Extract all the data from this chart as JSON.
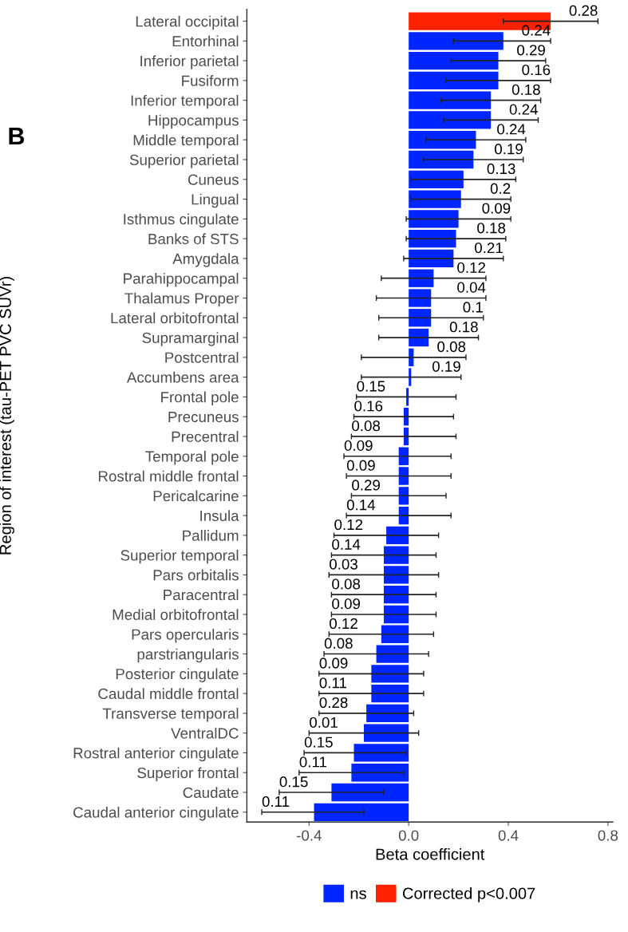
{
  "chart_data": {
    "type": "bar",
    "orientation": "horizontal",
    "xlabel": "Beta coefficient",
    "ylabel": "Region of interest (tau-PET PVC SUVr)",
    "categories": [
      "Lateral occipital",
      "Entorhinal",
      "Inferior parietal",
      "Fusiform",
      "Inferior temporal",
      "Hippocampus",
      "Middle temporal",
      "Superior parietal",
      "Cuneus",
      "Lingual",
      "Isthmus cingulate",
      "Banks of STS",
      "Amygdala",
      "Parahippocampal",
      "Thalamus Proper",
      "Lateral orbitofrontal",
      "Supramarginal",
      "Postcentral",
      "Accumbens area",
      "Frontal pole",
      "Precuneus",
      "Precentral",
      "Temporal pole",
      "Rostral middle frontal",
      "Pericalcarine",
      "Insula",
      "Pallidum",
      "Superior temporal",
      "Pars orbitalis",
      "Paracentral",
      "Medial orbitofrontal",
      "Pars opercularis",
      "parstriangularis",
      "Posterior cingulate",
      "Caudal middle frontal",
      "Transverse temporal",
      "VentralDC",
      "Rostral anterior cingulate",
      "Superior frontal",
      "Caudate",
      "Caudal anterior cingulate"
    ],
    "series": [
      {
        "name": "ns",
        "color": "#0026ff",
        "values": [
          null,
          0.38,
          0.36,
          0.36,
          0.33,
          0.33,
          0.27,
          0.26,
          0.22,
          0.21,
          0.2,
          0.19,
          0.18,
          0.1,
          0.09,
          0.09,
          0.08,
          0.02,
          0.01,
          -0.01,
          -0.02,
          -0.02,
          -0.04,
          -0.04,
          -0.04,
          -0.04,
          -0.09,
          -0.1,
          -0.1,
          -0.1,
          -0.1,
          -0.11,
          -0.13,
          -0.15,
          -0.15,
          -0.17,
          -0.18,
          -0.22,
          -0.23,
          -0.31,
          -0.38
        ],
        "errors": [
          null,
          [
            0.18,
            0.57
          ],
          [
            0.17,
            0.55
          ],
          [
            0.15,
            0.57
          ],
          [
            0.13,
            0.53
          ],
          [
            0.14,
            0.52
          ],
          [
            0.07,
            0.47
          ],
          [
            0.06,
            0.46
          ],
          [
            0.01,
            0.43
          ],
          [
            0.01,
            0.41
          ],
          [
            -0.01,
            0.41
          ],
          [
            -0.01,
            0.39
          ],
          [
            -0.02,
            0.38
          ],
          [
            -0.11,
            0.31
          ],
          [
            -0.13,
            0.31
          ],
          [
            -0.12,
            0.3
          ],
          [
            -0.12,
            0.28
          ],
          [
            -0.19,
            0.23
          ],
          [
            -0.19,
            0.21
          ],
          [
            -0.21,
            0.19
          ],
          [
            -0.22,
            0.18
          ],
          [
            -0.23,
            0.19
          ],
          [
            -0.26,
            0.17
          ],
          [
            -0.25,
            0.17
          ],
          [
            -0.23,
            0.15
          ],
          [
            -0.25,
            0.17
          ],
          [
            -0.3,
            0.12
          ],
          [
            -0.31,
            0.11
          ],
          [
            -0.32,
            0.12
          ],
          [
            -0.31,
            0.11
          ],
          [
            -0.31,
            0.11
          ],
          [
            -0.32,
            0.1
          ],
          [
            -0.34,
            0.08
          ],
          [
            -0.36,
            0.06
          ],
          [
            -0.36,
            0.06
          ],
          [
            -0.36,
            0.02
          ],
          [
            -0.4,
            0.04
          ],
          [
            -0.42,
            -0.01
          ],
          [
            -0.44,
            -0.02
          ],
          [
            -0.52,
            -0.1
          ],
          [
            -0.59,
            -0.18
          ]
        ]
      },
      {
        "name": "Corrected p<0.007",
        "color": "#ff2200",
        "values": [
          0.57,
          null,
          null,
          null,
          null,
          null,
          null,
          null,
          null,
          null,
          null,
          null,
          null,
          null,
          null,
          null,
          null,
          null,
          null,
          null,
          null,
          null,
          null,
          null,
          null,
          null,
          null,
          null,
          null,
          null,
          null,
          null,
          null,
          null,
          null,
          null,
          null,
          null,
          null,
          null,
          null
        ],
        "errors": [
          [
            0.38,
            0.76
          ],
          null,
          null,
          null,
          null,
          null,
          null,
          null,
          null,
          null,
          null,
          null,
          null,
          null,
          null,
          null,
          null,
          null,
          null,
          null,
          null,
          null,
          null,
          null,
          null,
          null,
          null,
          null,
          null,
          null,
          null,
          null,
          null,
          null,
          null,
          null,
          null,
          null,
          null,
          null,
          null
        ]
      }
    ],
    "xlim": [
      -0.65,
      0.82
    ],
    "xticks": [
      -0.4,
      {
        "value": 0,
        "label": "0.0"
      },
      0.4,
      0.8
    ],
    "grid": false,
    "legend": "bottom",
    "annotations": [
      "B",
      {
        "text": "0.28",
        "x": 0.76,
        "y": "Lateral occipital"
      },
      {
        "text": "0.24",
        "x": 0.57,
        "y": "Entorhinal"
      },
      {
        "text": "0.29",
        "x": 0.55,
        "y": "Inferior parietal"
      },
      {
        "text": "0.16",
        "x": 0.57,
        "y": "Fusiform"
      },
      {
        "text": "0.18",
        "x": 0.53,
        "y": "Inferior temporal"
      },
      {
        "text": "0.24",
        "x": 0.52,
        "y": "Hippocampus"
      },
      {
        "text": "0.24",
        "x": 0.47,
        "y": "Middle temporal"
      },
      {
        "text": "0.19",
        "x": 0.46,
        "y": "Superior parietal"
      },
      {
        "text": "0.13",
        "x": 0.43,
        "y": "Cuneus"
      },
      {
        "text": "0.2",
        "x": 0.41,
        "y": "Lingual"
      },
      {
        "text": "0.09",
        "x": 0.41,
        "y": "Isthmus cingulate"
      },
      {
        "text": "0.18",
        "x": 0.39,
        "y": "Banks of STS"
      },
      {
        "text": "0.21",
        "x": 0.38,
        "y": "Amygdala"
      },
      {
        "text": "0.12",
        "x": 0.31,
        "y": "Parahippocampal"
      },
      {
        "text": "0.04",
        "x": 0.31,
        "y": "Thalamus Proper"
      },
      {
        "text": "0.1",
        "x": 0.3,
        "y": "Lateral orbitofrontal"
      },
      {
        "text": "0.18",
        "x": 0.28,
        "y": "Supramarginal"
      },
      {
        "text": "0.08",
        "x": 0.23,
        "y": "Postcentral"
      },
      {
        "text": "0.19",
        "x": 0.21,
        "y": "Accumbens area"
      },
      {
        "text": "0.15",
        "x": -0.21,
        "y": "Frontal pole"
      },
      {
        "text": "0.16",
        "x": -0.22,
        "y": "Precuneus"
      },
      {
        "text": "0.08",
        "x": -0.23,
        "y": "Precentral"
      },
      {
        "text": "0.09",
        "x": -0.26,
        "y": "Temporal pole"
      },
      {
        "text": "0.09",
        "x": -0.25,
        "y": "Rostral middle frontal"
      },
      {
        "text": "0.29",
        "x": -0.23,
        "y": "Pericalcarine"
      },
      {
        "text": "0.14",
        "x": -0.25,
        "y": "Insula"
      },
      {
        "text": "0.12",
        "x": -0.3,
        "y": "Pallidum"
      },
      {
        "text": "0.14",
        "x": -0.31,
        "y": "Superior temporal"
      },
      {
        "text": "0.03",
        "x": -0.32,
        "y": "Pars orbitalis"
      },
      {
        "text": "0.08",
        "x": -0.31,
        "y": "Paracentral"
      },
      {
        "text": "0.09",
        "x": -0.31,
        "y": "Medial orbitofrontal"
      },
      {
        "text": "0.12",
        "x": -0.32,
        "y": "Pars opercularis"
      },
      {
        "text": "0.08",
        "x": -0.34,
        "y": "parstriangularis"
      },
      {
        "text": "0.09",
        "x": -0.36,
        "y": "Posterior cingulate"
      },
      {
        "text": "0.11",
        "x": -0.36,
        "y": "Caudal middle frontal"
      },
      {
        "text": "0.28",
        "x": -0.36,
        "y": "Transverse temporal"
      },
      {
        "text": "0.01",
        "x": -0.4,
        "y": "VentralDC"
      },
      {
        "text": "0.15",
        "x": -0.42,
        "y": "Rostral anterior cingulate"
      },
      {
        "text": "0.11",
        "x": -0.44,
        "y": "Superior frontal"
      },
      {
        "text": "0.15",
        "x": -0.52,
        "y": "Caudate"
      },
      {
        "text": "0.11",
        "x": -0.59,
        "y": "Caudal anterior cingulate"
      }
    ]
  }
}
